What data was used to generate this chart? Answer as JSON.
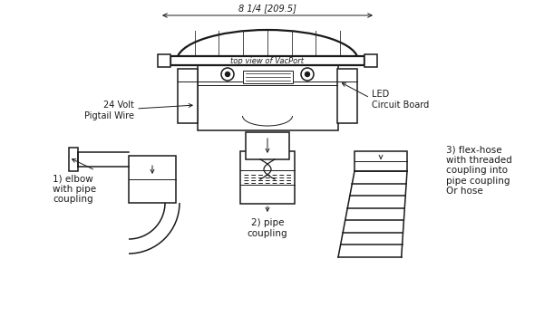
{
  "bg_color": "#ffffff",
  "line_color": "#1a1a1a",
  "title": "top view of VacPort",
  "dim_text": "8 1/4 [209.5]",
  "label_24v": "24 Volt\nPigtail Wire",
  "label_led": "LED\nCircuit Board",
  "label1": "1) elbow\nwith pipe\ncoupling",
  "label2": "2) pipe\ncoupling",
  "label3": "3) flex-hose\nwith threaded\ncoupling into\npipe coupling\nOr hose"
}
